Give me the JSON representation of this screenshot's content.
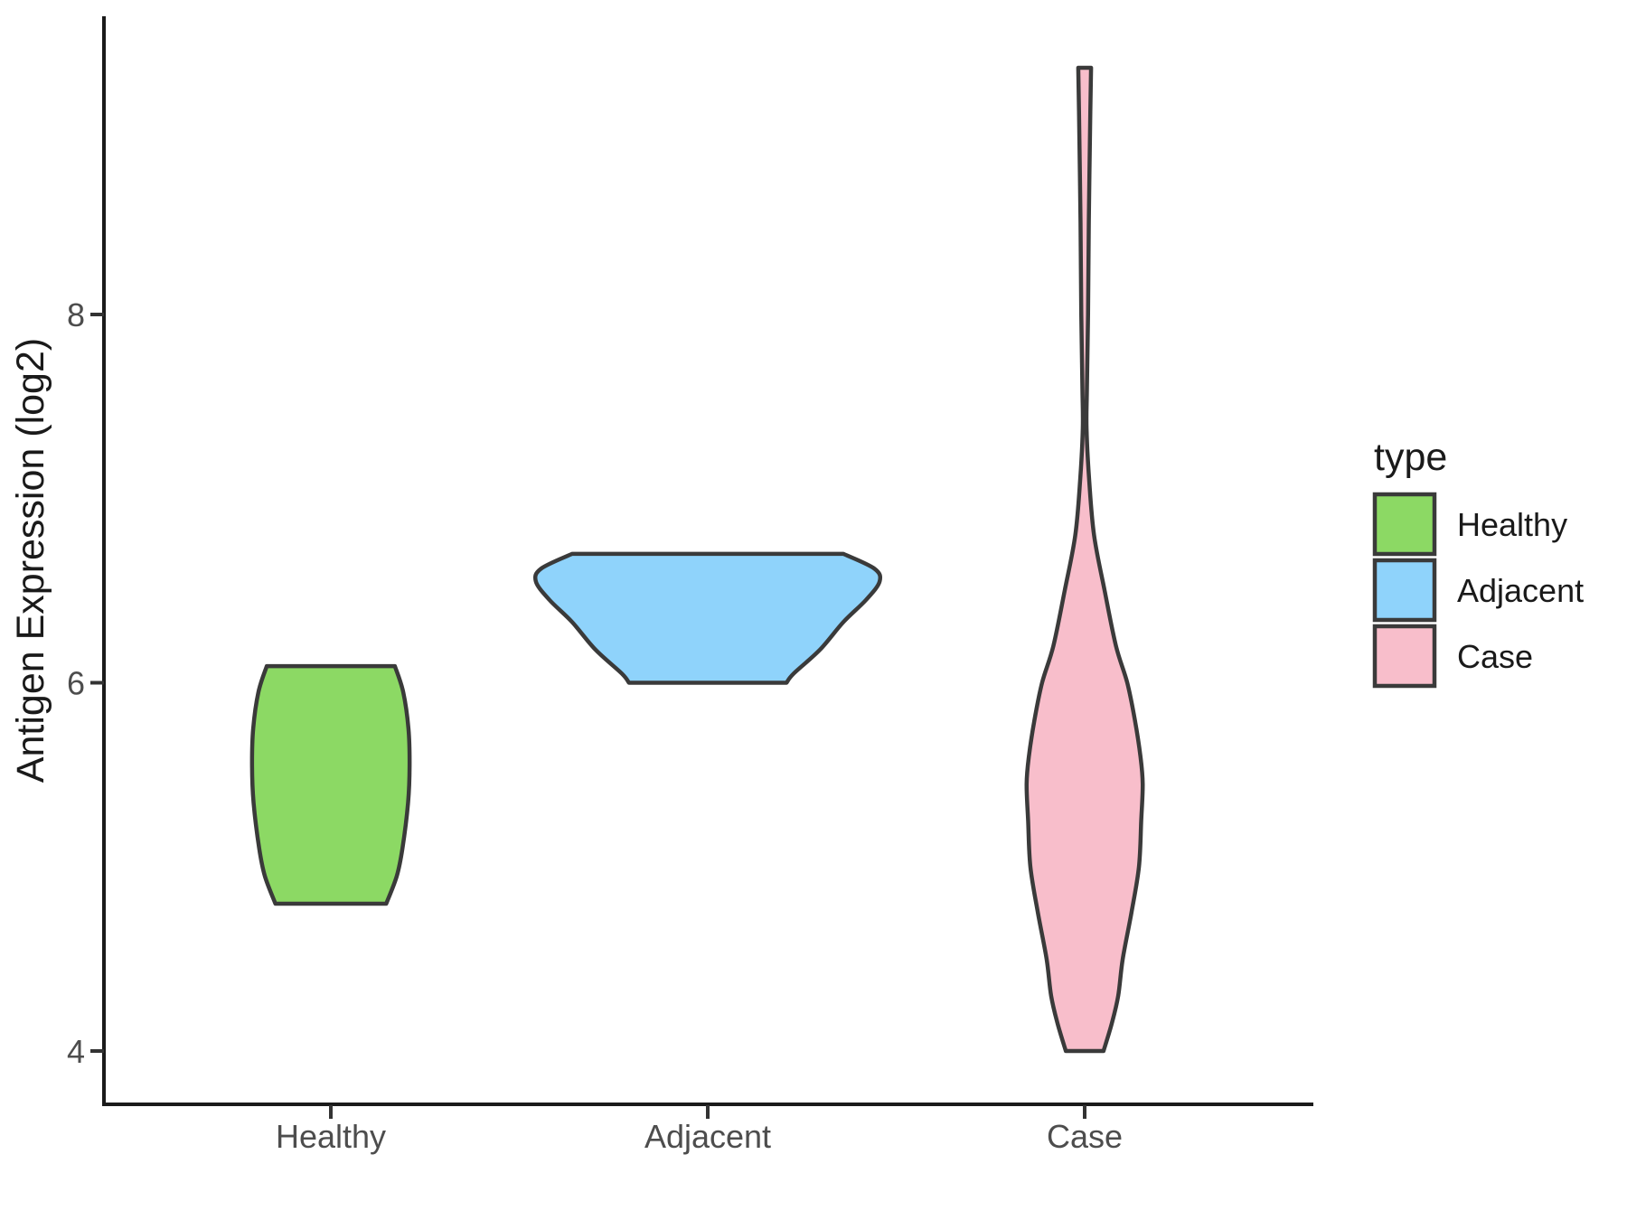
{
  "chart": {
    "y_axis_title": "Antigen Expression (log2)",
    "legend_title": "type"
  },
  "legend": {
    "title": "type",
    "position": "right",
    "entries": [
      {
        "label": "Healthy",
        "color": "#8CD964"
      },
      {
        "label": "Adjacent",
        "color": "#8FD3FB"
      },
      {
        "label": "Case",
        "color": "#F8BECB"
      }
    ]
  },
  "chart_data": {
    "type": "violin",
    "title": "",
    "xlabel": "",
    "ylabel": "Antigen Expression (log2)",
    "categories": [
      "Healthy",
      "Adjacent",
      "Case"
    ],
    "y_ticks": [
      4,
      6,
      8
    ],
    "ylim": [
      3.45,
      9.65
    ],
    "grid": false,
    "legend_position": "right",
    "legend_title": "type",
    "outline_color": "#3A3A3A",
    "axis_color": "#1A1A1A",
    "tick_label_color": "#4D4D4D",
    "text_color": "#1A1A1A",
    "series": [
      {
        "name": "Healthy",
        "fill": "#8CD964",
        "value_range": [
          4.8,
          6.09
        ],
        "profile": [
          [
            6.09,
            0.17
          ],
          [
            5.95,
            0.192
          ],
          [
            5.75,
            0.206
          ],
          [
            5.55,
            0.209
          ],
          [
            5.35,
            0.205
          ],
          [
            5.1,
            0.19
          ],
          [
            4.95,
            0.175
          ],
          [
            4.8,
            0.147
          ]
        ]
      },
      {
        "name": "Adjacent",
        "fill": "#8FD3FB",
        "value_range": [
          6.0,
          6.7
        ],
        "profile": [
          [
            6.7,
            0.36
          ],
          [
            6.62,
            0.442
          ],
          [
            6.55,
            0.456
          ],
          [
            6.45,
            0.42
          ],
          [
            6.33,
            0.36
          ],
          [
            6.18,
            0.298
          ],
          [
            6.05,
            0.228
          ],
          [
            6.0,
            0.209
          ]
        ]
      },
      {
        "name": "Case",
        "fill": "#F8BECB",
        "value_range": [
          4.0,
          9.34
        ],
        "profile": [
          [
            9.34,
            0.017
          ],
          [
            9.1,
            0.015
          ],
          [
            8.5,
            0.011
          ],
          [
            8.0,
            0.009
          ],
          [
            7.6,
            0.006
          ],
          [
            7.38,
            0.005
          ],
          [
            7.1,
            0.012
          ],
          [
            6.8,
            0.025
          ],
          [
            6.5,
            0.053
          ],
          [
            6.2,
            0.083
          ],
          [
            6.0,
            0.113
          ],
          [
            5.8,
            0.133
          ],
          [
            5.6,
            0.148
          ],
          [
            5.45,
            0.154
          ],
          [
            5.25,
            0.15
          ],
          [
            5.0,
            0.144
          ],
          [
            4.75,
            0.124
          ],
          [
            4.5,
            0.101
          ],
          [
            4.3,
            0.089
          ],
          [
            4.15,
            0.072
          ],
          [
            4.0,
            0.05
          ]
        ]
      }
    ]
  }
}
